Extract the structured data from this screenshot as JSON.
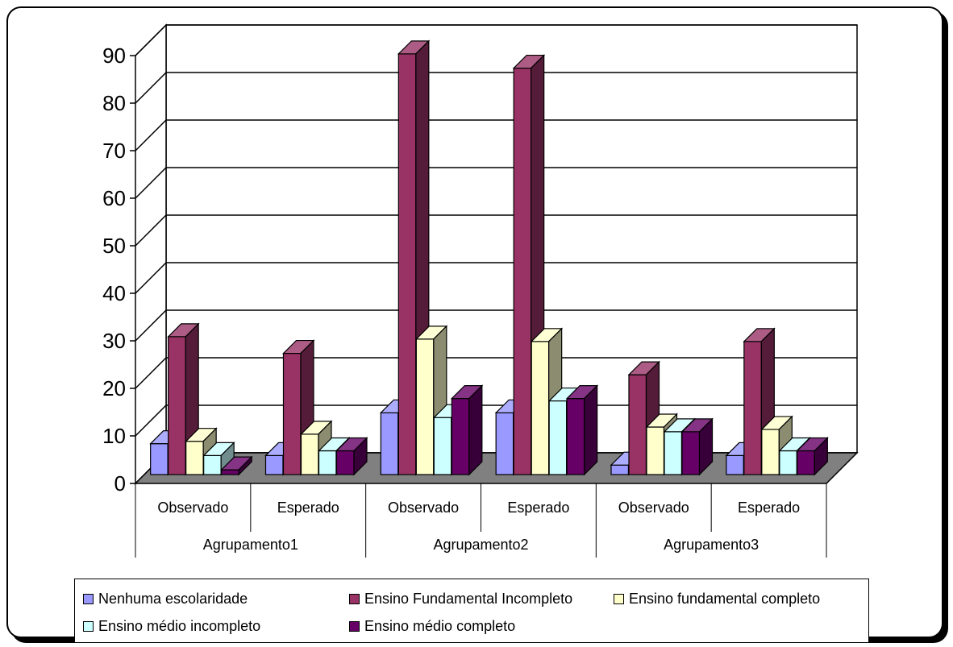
{
  "chart_data": {
    "type": "bar",
    "ylim": [
      0,
      90
    ],
    "yticks": [
      "0",
      "10",
      "20",
      "30",
      "40",
      "50",
      "60",
      "70",
      "80",
      "90"
    ],
    "groups": [
      {
        "label": "Agrupamento1",
        "categories": [
          "Observado",
          "Esperado"
        ]
      },
      {
        "label": "Agrupamento2",
        "categories": [
          "Observado",
          "Esperado"
        ]
      },
      {
        "label": "Agrupamento3",
        "categories": [
          "Observado",
          "Esperado"
        ]
      }
    ],
    "series": [
      {
        "name": "Nenhuma escolaridade",
        "color": "#9999ff",
        "values": [
          6.5,
          4,
          13,
          13,
          2,
          4
        ]
      },
      {
        "name": "Ensino Fundamental Incompleto",
        "color": "#993366",
        "values": [
          29,
          25.5,
          88.5,
          85.5,
          21,
          28
        ]
      },
      {
        "name": "Ensino fundamental completo",
        "color": "#ffffcc",
        "values": [
          7,
          8.5,
          28.5,
          28,
          10,
          9.5
        ]
      },
      {
        "name": "Ensino médio incompleto",
        "color": "#ccffff",
        "values": [
          4,
          5,
          12,
          15.5,
          9,
          5
        ]
      },
      {
        "name": "Ensino médio completo",
        "color": "#660066",
        "values": [
          1,
          5,
          16,
          16,
          9,
          5
        ]
      }
    ],
    "grid": true,
    "legend_position": "bottom"
  }
}
